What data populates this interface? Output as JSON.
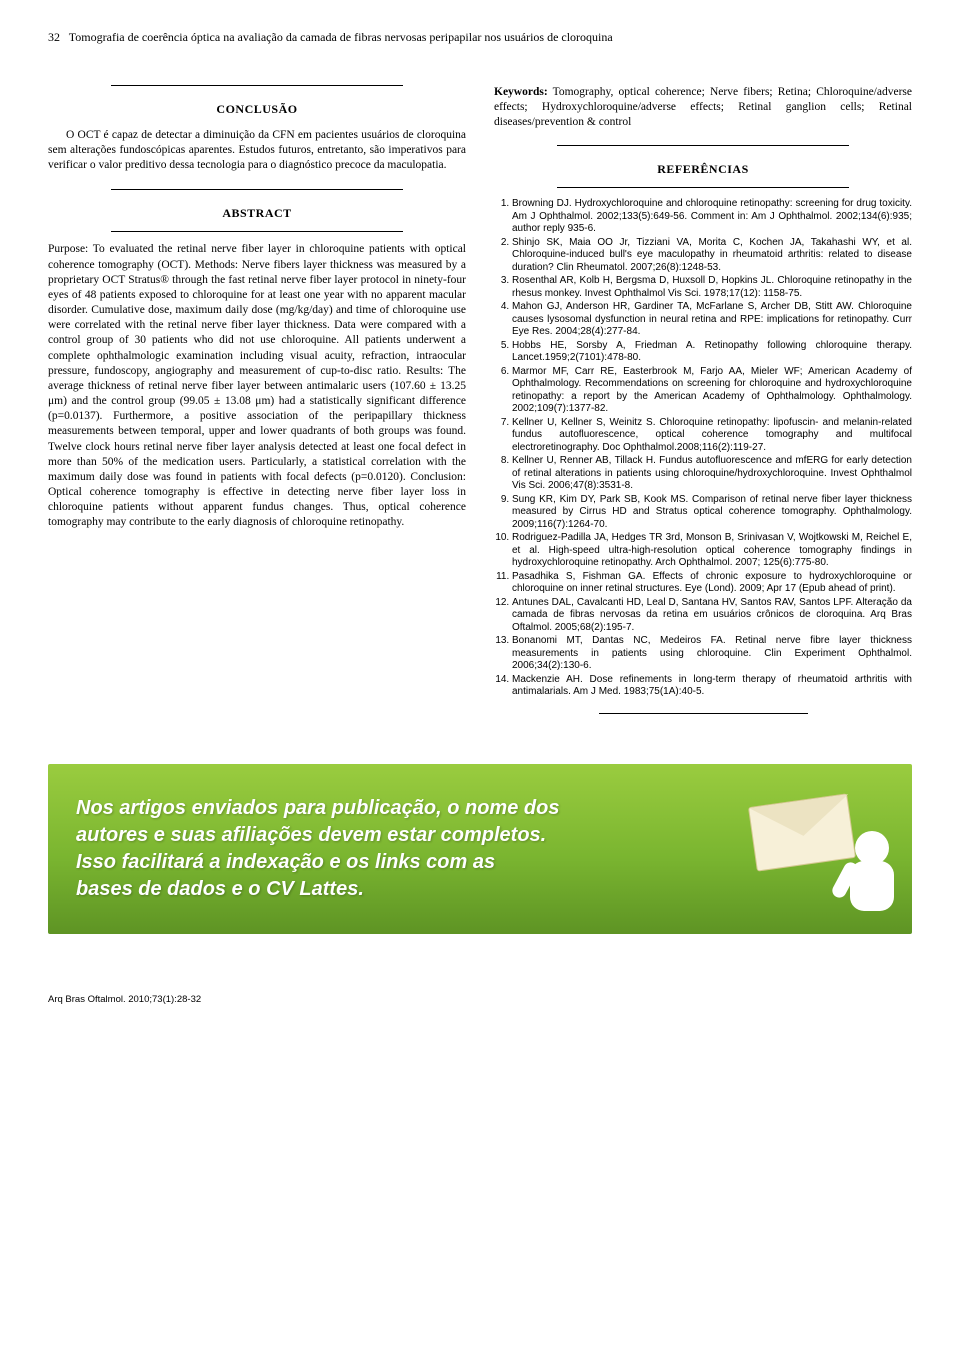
{
  "page_number": "32",
  "running_title": "Tomografia de coerência óptica na avaliação da camada de fibras nervosas peripapilar nos usuários de cloroquina",
  "conclusion": {
    "heading": "CONCLUSÃO",
    "text": "O OCT é capaz de detectar a diminuição da CFN em pacientes usuários de cloroquina sem alterações fundoscópicas aparentes. Estudos futuros, entretanto, são imperativos para verificar o valor preditivo dessa tecnologia para o diagnóstico precoce da maculopatia."
  },
  "abstract": {
    "heading": "ABSTRACT",
    "body": "Purpose: To evaluated the retinal nerve fiber layer in chloroquine patients with optical coherence tomography (OCT). Methods: Nerve fibers layer thickness was measured by a proprietary OCT Stratus® through the fast retinal nerve fiber layer protocol in ninety-four eyes of 48 patients exposed to chloroquine for at least one year with no apparent macular disorder. Cumulative dose, maximum daily dose (mg/kg/day) and time of chloroquine use were correlated with the retinal nerve fiber layer thickness. Data were compared with a control group of 30 patients who did not use chloroquine. All patients underwent a complete ophthalmologic examination including visual acuity, refraction, intraocular pressure, fundoscopy, angiography and measurement of cup-to-disc ratio. Results: The average thickness of retinal nerve fiber layer between antimalaric users (107.60 ± 13.25 μm) and the control group (99.05 ± 13.08 μm) had a statistically significant difference (p=0.0137). Furthermore, a positive association of the peripapillary thickness measurements between temporal, upper and lower quadrants of both groups was found. Twelve clock hours retinal nerve fiber layer analysis detected at least one focal defect in more than 50% of the medication users. Particularly, a statistical correlation with the maximum daily dose was found in patients with focal defects (p=0.0120). Conclusion: Optical coherence tomography is effective in detecting nerve fiber layer loss in chloroquine patients without apparent fundus changes. Thus, optical coherence tomography may contribute to the early diagnosis of chloroquine retinopathy."
  },
  "keywords": {
    "label": "Keywords:",
    "text": "Tomography, optical coherence; Nerve fibers; Retina; Chloroquine/adverse effects; Hydroxychloroquine/adverse effects; Retinal ganglion cells; Retinal diseases/prevention & control"
  },
  "references": {
    "heading": "REFERÊNCIAS",
    "items": [
      "Browning DJ. Hydroxychloroquine and chloroquine retinopathy: screening for drug toxicity. Am J Ophthalmol. 2002;133(5):649-56. Comment in: Am J Ophthalmol. 2002;134(6):935; author reply 935-6.",
      "Shinjo SK, Maia OO Jr, Tizziani VA, Morita C, Kochen JA, Takahashi WY, et al. Chloroquine-induced bull's eye maculopathy in rheumatoid arthritis: related to disease duration? Clin Rheumatol. 2007;26(8):1248-53.",
      "Rosenthal AR, Kolb H, Bergsma D, Huxsoll D, Hopkins JL. Chloroquine retinopathy in the rhesus monkey. Invest Ophthalmol Vis Sci. 1978;17(12): 1158-75.",
      "Mahon GJ, Anderson HR, Gardiner TA, McFarlane S, Archer DB, Stitt AW. Chloroquine causes lysosomal dysfunction in neural retina and RPE: implications for retinopathy. Curr Eye Res. 2004;28(4):277-84.",
      "Hobbs HE, Sorsby A, Friedman A. Retinopathy following chloroquine therapy. Lancet.1959;2(7101):478-80.",
      "Marmor MF, Carr RE, Easterbrook M, Farjo AA, Mieler WF; American Academy of Ophthalmology. Recommendations on screening for chloroquine and hydroxychloroquine retinopathy: a report by the American Academy of Ophthalmology. Ophthalmology. 2002;109(7):1377-82.",
      "Kellner U, Kellner S, Weinitz S. Chloroquine retinopathy: lipofuscin- and melanin-related fundus autofluorescence, optical coherence tomography and multifocal electroretinography. Doc Ophthalmol.2008;116(2):119-27.",
      "Kellner U, Renner AB, Tillack H. Fundus autofluorescence and mfERG for early detection of retinal alterations in patients using chloroquine/hydroxychloroquine. Invest Ophthalmol Vis Sci. 2006;47(8):3531-8.",
      "Sung KR, Kim DY, Park SB, Kook MS. Comparison of retinal nerve fiber layer thickness measured by Cirrus HD and Stratus optical coherence tomography. Ophthalmology. 2009;116(7):1264-70.",
      "Rodriguez-Padilla JA, Hedges TR 3rd, Monson B, Srinivasan V, Wojtkowski M, Reichel E, et al. High-speed ultra-high-resolution optical coherence tomography findings in hydroxychloroquine retinopathy. Arch Ophthalmol. 2007; 125(6):775-80.",
      "Pasadhika S, Fishman GA. Effects of chronic exposure to hydroxychloroquine or chloroquine on inner retinal structures. Eye (Lond). 2009; Apr 17 (Epub ahead of print).",
      "Antunes DAL, Cavalcanti HD, Leal D, Santana HV, Santos RAV, Santos LPF. Alteração da camada de fibras nervosas da retina em usuários crônicos de cloroquina. Arq Bras Oftalmol. 2005;68(2):195-7.",
      "Bonanomi MT, Dantas NC, Medeiros FA. Retinal nerve fibre layer thickness measurements in patients using chloroquine. Clin Experiment Ophthalmol. 2006;34(2):130-6.",
      "Mackenzie AH. Dose refinements in long-term therapy of rheumatoid arthritis with antimalarials. Am J Med. 1983;75(1A):40-5."
    ]
  },
  "banner": {
    "line1": "Nos artigos enviados para publicação, o nome dos",
    "line2": "autores e suas afiliações devem estar completos.",
    "line3": "Isso facilitará a indexação e os links com as",
    "line4": "bases de dados e o CV Lattes."
  },
  "footer": "Arq Bras Oftalmol. 2010;73(1):28-32"
}
